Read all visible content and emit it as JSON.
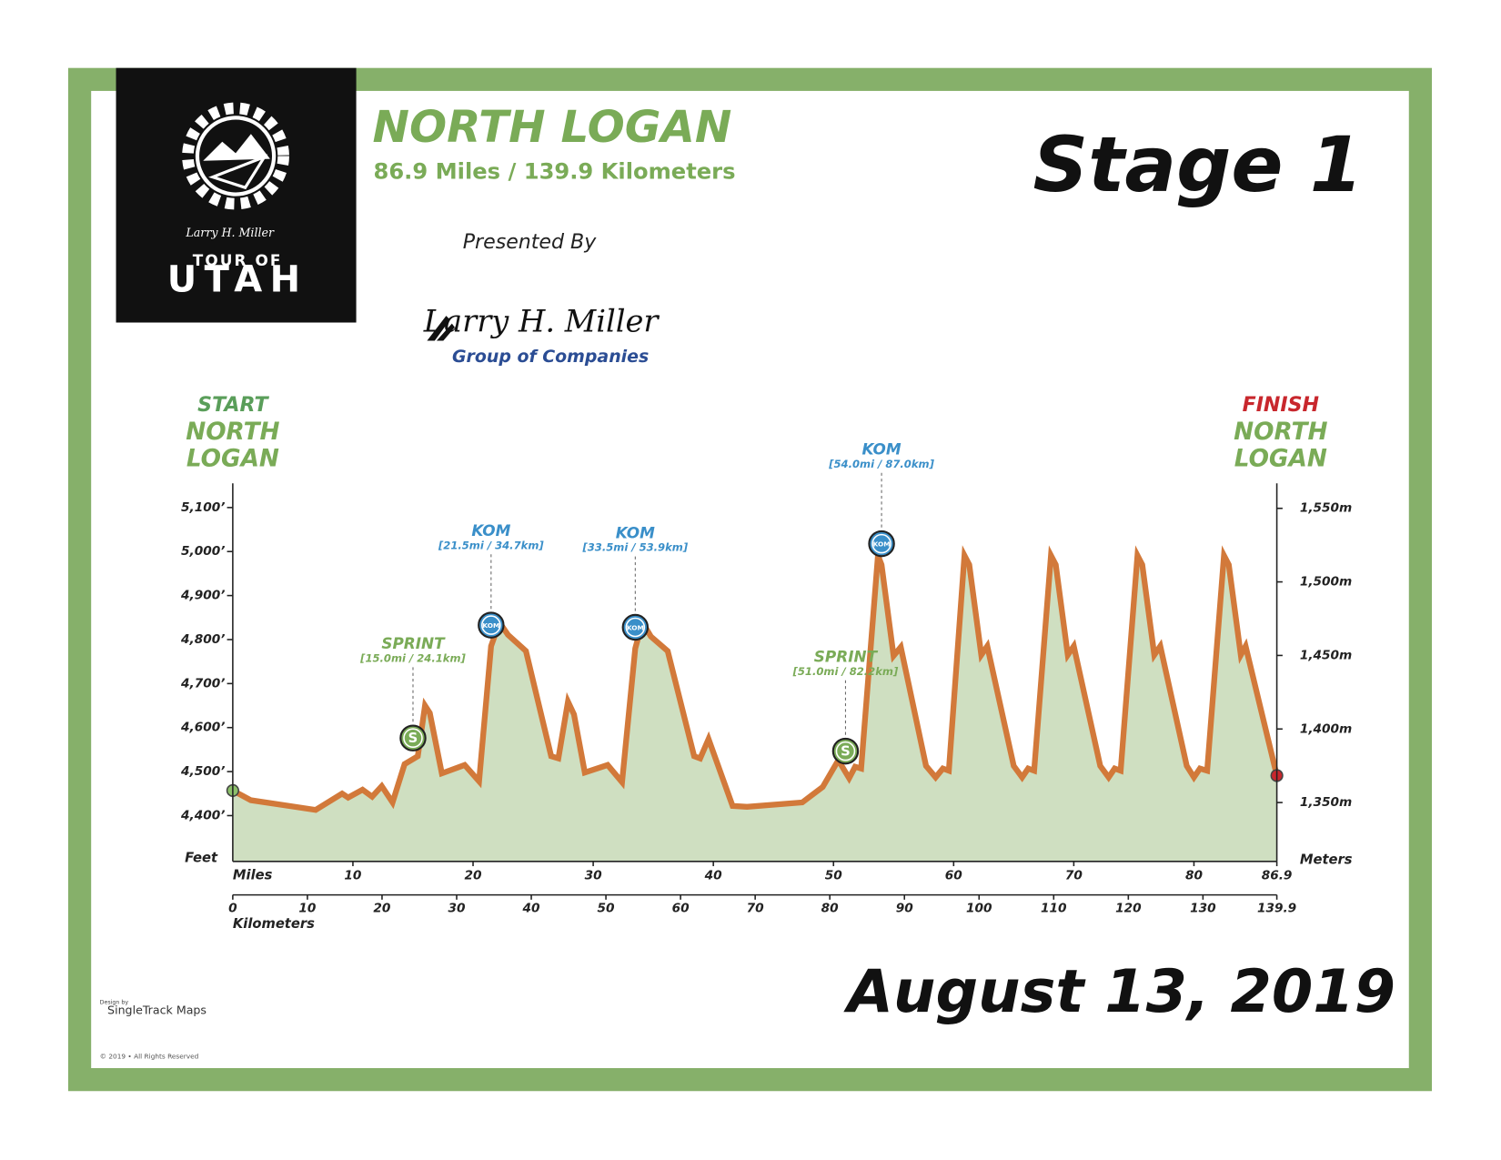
{
  "page": {
    "title": "NORTH LOGAN",
    "subtitle": "86.9 Miles / 139.9 Kilometers",
    "presented_by": "Presented By",
    "sponsor_signature": "Larry H. Miller",
    "sponsor_name": "Group of Companies",
    "stage": "Stage 1",
    "date": "August 13, 2019",
    "logo_line1": "TOUR OF",
    "logo_line2": "UTAH",
    "logo_signature": "Larry H. Miller",
    "start": [
      "START",
      "NORTH",
      "LOGAN"
    ],
    "finish": [
      "FINISH",
      "NORTH",
      "LOGAN"
    ],
    "credit_small": "Design by",
    "credit": "SingleTrack Maps",
    "copyright": "© 2019 • All Rights Reserved"
  },
  "chart_data": {
    "type": "area",
    "x_label": "Miles",
    "x2_label": "Kilometers",
    "y_label": "Feet",
    "y2_label": "Meters",
    "line_color": "#d2793a",
    "fill_color": "#cfdfc1",
    "xlim": [
      0,
      86.9
    ],
    "xticks": [
      10,
      20,
      30,
      40,
      50,
      60,
      70,
      80,
      86.9
    ],
    "x2lim": [
      0,
      139.9
    ],
    "x2ticks": [
      0,
      10,
      20,
      30,
      40,
      50,
      60,
      70,
      80,
      90,
      100,
      110,
      120,
      130,
      139.9
    ],
    "ylim": [
      4296,
      5155
    ],
    "yticks": [
      {
        "value": 4400,
        "label": "4,400’"
      },
      {
        "value": 4500,
        "label": "4,500’"
      },
      {
        "value": 4600,
        "label": "4,600’"
      },
      {
        "value": 4700,
        "label": "4,700’"
      },
      {
        "value": 4800,
        "label": "4,800’"
      },
      {
        "value": 4900,
        "label": "4,900’"
      },
      {
        "value": 5000,
        "label": "5,000’"
      },
      {
        "value": 5100,
        "label": "5,100’"
      }
    ],
    "y2lim": [
      1310,
      1567
    ],
    "y2ticks": [
      {
        "value": 1350,
        "label": "1,350m"
      },
      {
        "value": 1400,
        "label": "1,400m"
      },
      {
        "value": 1450,
        "label": "1,450m"
      },
      {
        "value": 1500,
        "label": "1,500m"
      },
      {
        "value": 1550,
        "label": "1,550m"
      }
    ],
    "x": [
      0,
      1.5,
      6.9,
      9.1,
      9.6,
      10.8,
      11.6,
      12.4,
      13.3,
      14.3,
      15.4,
      16.0,
      16.4,
      17.4,
      19.3,
      20.5,
      21.5,
      22.2,
      22.9,
      24.4,
      26.5,
      27.1,
      27.9,
      28.4,
      29.3,
      31.2,
      32.4,
      33.5,
      34.1,
      34.8,
      36.2,
      38.4,
      38.9,
      39.6,
      41.6,
      42.8,
      47.4,
      49.1,
      50.4,
      51.3,
      51.8,
      52.3,
      53.7,
      54.0,
      55.0,
      55.6,
      57.7,
      58.5,
      59.1,
      59.6,
      60.9,
      61.3,
      62.3,
      62.8,
      65.0,
      65.7,
      66.2,
      66.7,
      68.1,
      68.5,
      69.5,
      70.0,
      72.2,
      72.9,
      73.4,
      73.9,
      75.3,
      75.7,
      76.7,
      77.2,
      79.4,
      80.0,
      80.5,
      81.1,
      82.5,
      82.9,
      83.9,
      84.3,
      86.9
    ],
    "values": [
      4457,
      4435,
      4413,
      4450,
      4441,
      4459,
      4443,
      4467,
      4430,
      4517,
      4535,
      4650,
      4633,
      4496,
      4515,
      4478,
      4785,
      4839,
      4811,
      4774,
      4535,
      4530,
      4659,
      4630,
      4498,
      4515,
      4476,
      4780,
      4839,
      4807,
      4774,
      4535,
      4530,
      4574,
      4422,
      4420,
      4430,
      4465,
      4526,
      4485,
      4511,
      4507,
      4991,
      4970,
      4763,
      4783,
      4513,
      4487,
      4507,
      4502,
      4991,
      4970,
      4765,
      4785,
      4513,
      4487,
      4507,
      4502,
      4991,
      4970,
      4765,
      4785,
      4513,
      4487,
      4507,
      4502,
      4991,
      4970,
      4765,
      4785,
      4513,
      4487,
      4507,
      4502,
      4991,
      4970,
      4765,
      4785,
      4491
    ],
    "annotations": [
      {
        "label": "SPRINT",
        "detail": "[15.0mi / 24.1km]",
        "icon": "S",
        "x": 15.0,
        "color": "#7aab57"
      },
      {
        "label": "KOM",
        "detail": "[21.5mi / 34.7km]",
        "icon": "KOM",
        "x": 21.5,
        "color": "#3a8fc9"
      },
      {
        "label": "KOM",
        "detail": "[33.5mi / 53.9km]",
        "icon": "KOM",
        "x": 33.5,
        "color": "#3a8fc9"
      },
      {
        "label": "SPRINT",
        "detail": "[51.0mi / 82.2km]",
        "icon": "S",
        "x": 51.0,
        "color": "#7aab57"
      },
      {
        "label": "KOM",
        "detail": "[54.0mi / 87.0km]",
        "icon": "KOM",
        "x": 54.0,
        "color": "#3a8fc9"
      }
    ]
  }
}
